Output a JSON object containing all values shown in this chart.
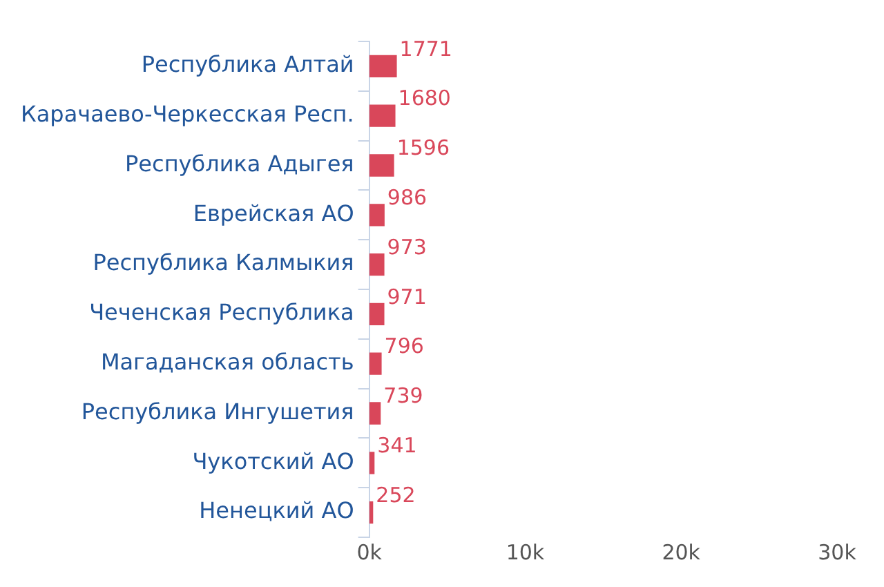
{
  "chart_data": {
    "type": "bar",
    "orientation": "horizontal",
    "categories": [
      "Республика Алтай",
      "Карачаево-Черкесская Респ.",
      "Республика Адыгея",
      "Еврейская АО",
      "Республика Калмыкия",
      "Чеченская Республика",
      "Магаданская область",
      "Республика Ингушетия",
      "Чукотский АО",
      "Ненецкий АО"
    ],
    "values": [
      1771,
      1680,
      1596,
      986,
      973,
      971,
      796,
      739,
      341,
      252
    ],
    "color": "#d9475a",
    "xlim": [
      0,
      30000
    ],
    "xticks": [
      {
        "value": 0,
        "label": "0k"
      },
      {
        "value": 10000,
        "label": "10k"
      },
      {
        "value": 20000,
        "label": "20k"
      },
      {
        "value": 30000,
        "label": "30k"
      }
    ],
    "grid": false,
    "legend": false,
    "data_labels": true
  }
}
